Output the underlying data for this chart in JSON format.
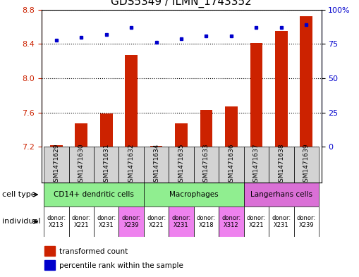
{
  "title": "GDS5349 / ILMN_1743352",
  "samples": [
    "GSM1471629",
    "GSM1471630",
    "GSM1471631",
    "GSM1471632",
    "GSM1471634",
    "GSM1471635",
    "GSM1471633",
    "GSM1471636",
    "GSM1471637",
    "GSM1471638",
    "GSM1471639"
  ],
  "red_values": [
    7.22,
    7.47,
    7.59,
    8.27,
    7.21,
    7.47,
    7.63,
    7.67,
    8.41,
    8.55,
    8.72
  ],
  "blue_values": [
    78,
    80,
    82,
    87,
    76,
    79,
    81,
    81,
    87,
    87,
    89
  ],
  "ylim_left": [
    7.2,
    8.8
  ],
  "ylim_right": [
    0,
    100
  ],
  "yticks_left": [
    7.2,
    7.6,
    8.0,
    8.4,
    8.8
  ],
  "yticks_right": [
    0,
    25,
    50,
    75,
    100
  ],
  "ytick_labels_right": [
    "0",
    "25",
    "50",
    "75",
    "100%"
  ],
  "cell_types": [
    {
      "label": "CD14+ dendritic cells",
      "start": 0,
      "end": 4,
      "color": "#90EE90"
    },
    {
      "label": "Macrophages",
      "start": 4,
      "end": 8,
      "color": "#90EE90"
    },
    {
      "label": "Langerhans cells",
      "start": 8,
      "end": 11,
      "color": "#DA70D6"
    }
  ],
  "individuals": [
    {
      "label": "donor:\nX213",
      "col": 0,
      "color": "#FFFFFF"
    },
    {
      "label": "donor:\nX221",
      "col": 1,
      "color": "#FFFFFF"
    },
    {
      "label": "donor:\nX231",
      "col": 2,
      "color": "#FFFFFF"
    },
    {
      "label": "donor:\nX239",
      "col": 3,
      "color": "#EE82EE"
    },
    {
      "label": "donor:\nX221",
      "col": 4,
      "color": "#FFFFFF"
    },
    {
      "label": "donor:\nX231",
      "col": 5,
      "color": "#EE82EE"
    },
    {
      "label": "donor:\nX218",
      "col": 6,
      "color": "#FFFFFF"
    },
    {
      "label": "donor:\nX312",
      "col": 7,
      "color": "#EE82EE"
    },
    {
      "label": "donor:\nX221",
      "col": 8,
      "color": "#FFFFFF"
    },
    {
      "label": "donor:\nX231",
      "col": 9,
      "color": "#FFFFFF"
    },
    {
      "label": "donor:\nX239",
      "col": 10,
      "color": "#FFFFFF"
    }
  ],
  "bar_color": "#CC2200",
  "dot_color": "#0000CC",
  "background_color": "#FFFFFF",
  "title_fontsize": 11,
  "tick_fontsize": 8,
  "sample_fontsize": 6.5,
  "label_color_left": "#CC2200",
  "label_color_right": "#0000CC",
  "sample_bg_color": "#D3D3D3",
  "outer_border_color": "#000000"
}
